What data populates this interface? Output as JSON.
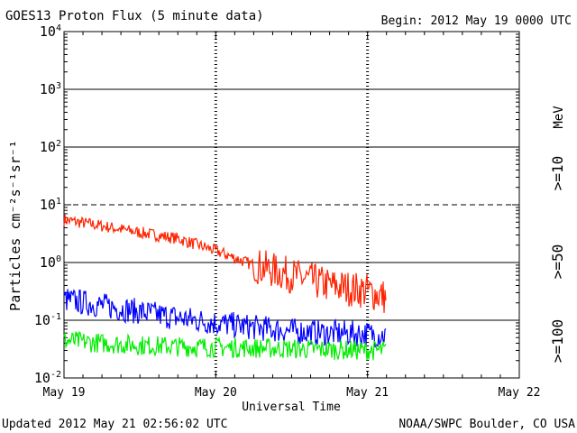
{
  "header": {
    "title": "GOES13 Proton Flux (5 minute data)",
    "begin": "Begin: 2012 May 19 0000 UTC"
  },
  "footer": {
    "updated": "Updated 2012 May 21 02:56:02 UTC",
    "source": "NOAA/SWPC Boulder, CO USA"
  },
  "chart_data": {
    "type": "line",
    "title": "GOES13 Proton Flux (5 minute data)",
    "xlabel": "Universal Time",
    "ylabel": "Particles cm⁻²s⁻¹sr⁻¹",
    "y_scale": "log",
    "ylim": [
      0.01,
      10000
    ],
    "y_ticks": [
      {
        "value": 0.01,
        "base": "10",
        "exp": "-2"
      },
      {
        "value": 0.1,
        "base": "10",
        "exp": "-1"
      },
      {
        "value": 1,
        "base": "10",
        "exp": "0"
      },
      {
        "value": 10,
        "base": "10",
        "exp": "1"
      },
      {
        "value": 100,
        "base": "10",
        "exp": "2"
      },
      {
        "value": 1000,
        "base": "10",
        "exp": "3"
      },
      {
        "value": 10000,
        "base": "10",
        "exp": "4"
      }
    ],
    "x_ticks": [
      "May 19",
      "May 20",
      "May 21",
      "May 22"
    ],
    "xlim": [
      "2012-05-19 00:00",
      "2012-05-22 00:00"
    ],
    "legend_unit": "MeV",
    "legend_position": "right",
    "series": [
      {
        "name": ">=10",
        "color": "#ff2200",
        "x": [
          "2012-05-19 00:00",
          "2012-05-19 06:00",
          "2012-05-19 12:00",
          "2012-05-19 18:00",
          "2012-05-20 00:00",
          "2012-05-20 06:00",
          "2012-05-20 12:00",
          "2012-05-20 18:00",
          "2012-05-21 00:00",
          "2012-05-21 02:55"
        ],
        "values": [
          5.5,
          4.3,
          3.3,
          2.6,
          1.6,
          0.9,
          0.6,
          0.4,
          0.32,
          0.25
        ]
      },
      {
        "name": ">=50",
        "color": "#0000ff",
        "x": [
          "2012-05-19 00:00",
          "2012-05-19 06:00",
          "2012-05-19 12:00",
          "2012-05-19 18:00",
          "2012-05-20 00:00",
          "2012-05-20 06:00",
          "2012-05-20 12:00",
          "2012-05-20 18:00",
          "2012-05-21 00:00",
          "2012-05-21 02:55"
        ],
        "values": [
          0.23,
          0.18,
          0.14,
          0.11,
          0.09,
          0.075,
          0.065,
          0.06,
          0.058,
          0.055
        ]
      },
      {
        "name": ">=100",
        "color": "#00ee00",
        "x": [
          "2012-05-19 00:00",
          "2012-05-19 06:00",
          "2012-05-19 12:00",
          "2012-05-19 18:00",
          "2012-05-20 00:00",
          "2012-05-20 06:00",
          "2012-05-20 12:00",
          "2012-05-20 18:00",
          "2012-05-21 00:00",
          "2012-05-21 02:55"
        ],
        "values": [
          0.045,
          0.04,
          0.037,
          0.035,
          0.034,
          0.033,
          0.032,
          0.031,
          0.03,
          0.03
        ]
      }
    ],
    "threshold_dashed_at": 10,
    "grid": "horizontal decades",
    "colors": {
      "axis": "#000000",
      "background": "#ffffff"
    }
  }
}
